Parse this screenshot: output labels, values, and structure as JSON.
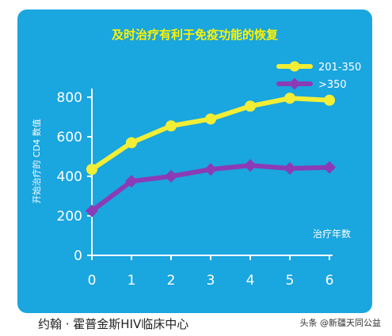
{
  "chart_data": {
    "type": "line",
    "title": "及时治疗有利于免疫功能的恢复",
    "ylabel": "开始治疗的 CD4 数值",
    "xlabel": "治疗年数",
    "categories": [
      0,
      1,
      2,
      3,
      4,
      5,
      6
    ],
    "ylim": [
      0,
      900
    ],
    "yticks": [
      0,
      200,
      400,
      600,
      800
    ],
    "series": [
      {
        "name": "201-350",
        "color": "#f2ee36",
        "values": [
          435,
          570,
          655,
          690,
          755,
          795,
          785
        ]
      },
      {
        "name": ">350",
        "color": "#8b3bb5",
        "values": [
          225,
          375,
          400,
          435,
          455,
          440,
          445
        ]
      }
    ],
    "legend_position": "top-right",
    "grid": false
  },
  "footer": {
    "source": "约翰 · 霍普金斯HIV临床中心",
    "watermark": "头条 @新疆天同公益"
  },
  "colors": {
    "background": "#1aa6df",
    "title": "#fff200",
    "axis": "#ffffff"
  }
}
